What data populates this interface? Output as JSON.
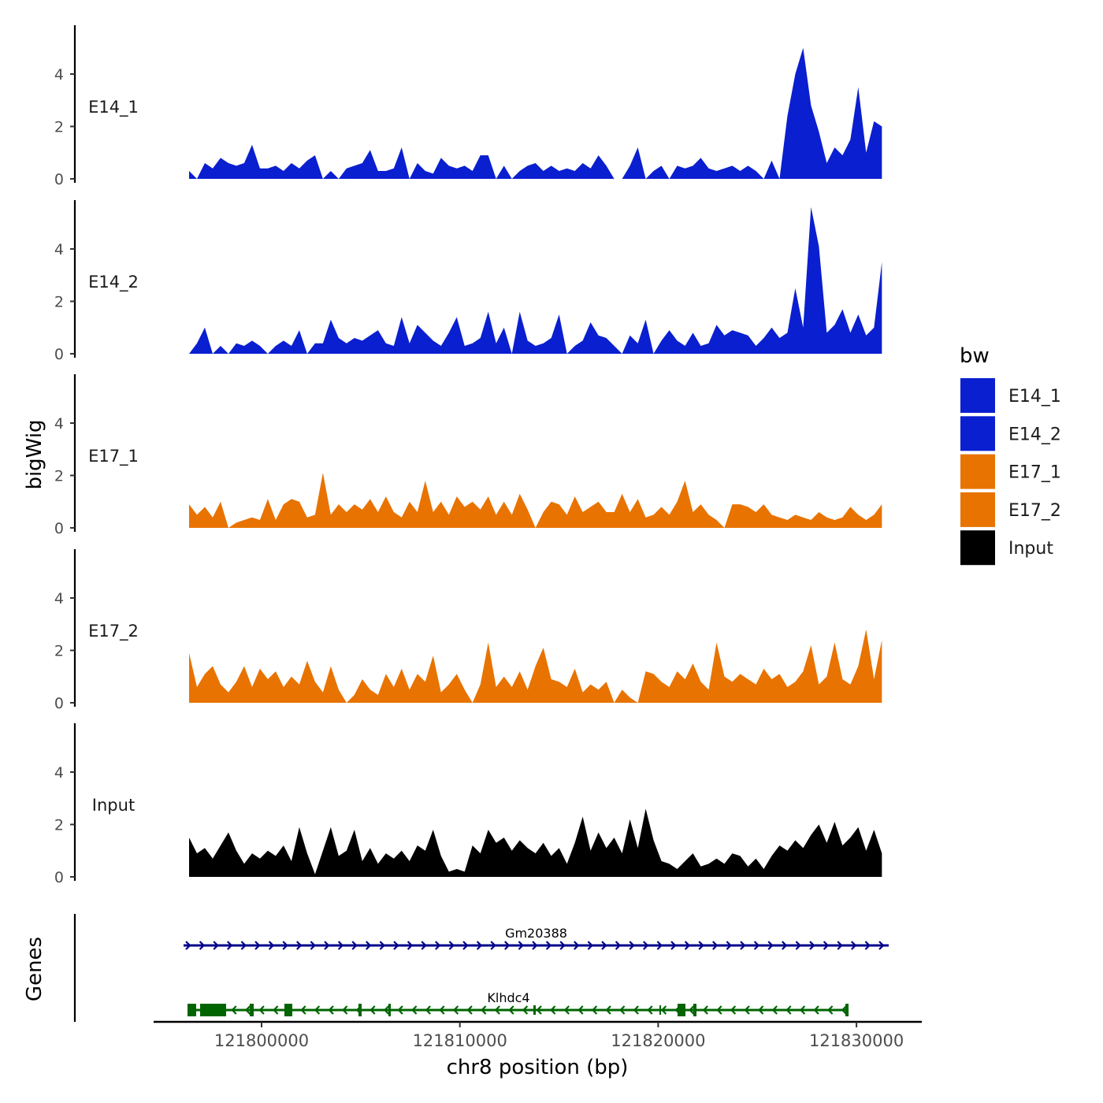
{
  "chart_data": {
    "type": "area",
    "xlabel": "chr8 position (bp)",
    "ylabel": "bigWig",
    "genes_label": "Genes",
    "x_start": 121796345,
    "x_step": 397,
    "xlim": [
      121791000,
      121833000
    ],
    "xticks": [
      121800000,
      121810000,
      121820000,
      121830000
    ],
    "xtick_labels": [
      "121800000",
      "121810000",
      "121820000",
      "121830000"
    ],
    "ylim": [
      0,
      5.9
    ],
    "yticks": [
      0,
      2,
      4
    ],
    "ytick_labels": [
      "0",
      "2",
      "4"
    ],
    "legend": {
      "title": "bw",
      "position": "right",
      "entries": [
        {
          "label": "E14_1",
          "color": "#0A1FCF"
        },
        {
          "label": "E14_2",
          "color": "#0A1FCF"
        },
        {
          "label": "E17_1",
          "color": "#E87300"
        },
        {
          "label": "E17_2",
          "color": "#E87300"
        },
        {
          "label": "Input",
          "color": "#000000"
        }
      ]
    },
    "series": [
      {
        "name": "E14_1",
        "color": "#0A1FCF",
        "values": [
          0.3,
          0,
          0.6,
          0.4,
          0.8,
          0.6,
          0.5,
          0.6,
          1.3,
          0.4,
          0.4,
          0.5,
          0.3,
          0.6,
          0.4,
          0.7,
          0.9,
          0,
          0.3,
          0,
          0.4,
          0.5,
          0.6,
          1.1,
          0.3,
          0.3,
          0.4,
          1.2,
          0,
          0.6,
          0.3,
          0.2,
          0.8,
          0.5,
          0.4,
          0.5,
          0.3,
          0.9,
          0.9,
          0,
          0.5,
          0,
          0.3,
          0.5,
          0.6,
          0.3,
          0.5,
          0.3,
          0.4,
          0.3,
          0.6,
          0.4,
          0.9,
          0.5,
          0,
          0,
          0.5,
          1.2,
          0,
          0.3,
          0.5,
          0,
          0.5,
          0.4,
          0.5,
          0.8,
          0.4,
          0.3,
          0.4,
          0.5,
          0.3,
          0.5,
          0.3,
          0,
          0.7,
          0,
          2.4,
          4.0,
          5.0,
          2.8,
          1.8,
          0.6,
          1.2,
          0.9,
          1.5,
          3.5,
          1.0,
          2.2,
          2.0
        ]
      },
      {
        "name": "E14_2",
        "color": "#0A1FCF",
        "values": [
          0,
          0.4,
          1.0,
          0,
          0.3,
          0,
          0.4,
          0.3,
          0.5,
          0.3,
          0,
          0.3,
          0.5,
          0.3,
          0.9,
          0,
          0.4,
          0.4,
          1.3,
          0.6,
          0.4,
          0.6,
          0.5,
          0.7,
          0.9,
          0.4,
          0.3,
          1.4,
          0.4,
          1.1,
          0.8,
          0.5,
          0.3,
          0.8,
          1.4,
          0.3,
          0.4,
          0.6,
          1.6,
          0.4,
          1.0,
          0,
          1.6,
          0.5,
          0.3,
          0.4,
          0.6,
          1.5,
          0,
          0.3,
          0.5,
          1.2,
          0.7,
          0.6,
          0.3,
          0,
          0.7,
          0.4,
          1.3,
          0,
          0.5,
          0.9,
          0.5,
          0.3,
          0.8,
          0.3,
          0.4,
          1.1,
          0.7,
          0.9,
          0.8,
          0.7,
          0.3,
          0.6,
          1.0,
          0.6,
          0.8,
          2.5,
          1.0,
          5.6,
          4.1,
          0.8,
          1.1,
          1.7,
          0.8,
          1.5,
          0.7,
          1.0,
          3.5
        ]
      },
      {
        "name": "E17_1",
        "color": "#E87300",
        "values": [
          0.9,
          0.5,
          0.8,
          0.4,
          1.0,
          0,
          0.2,
          0.3,
          0.4,
          0.3,
          1.1,
          0.3,
          0.9,
          1.1,
          1.0,
          0.4,
          0.5,
          2.1,
          0.5,
          0.9,
          0.6,
          0.9,
          0.7,
          1.1,
          0.6,
          1.2,
          0.6,
          0.4,
          1.0,
          0.6,
          1.8,
          0.6,
          1.0,
          0.5,
          1.2,
          0.8,
          1.0,
          0.7,
          1.2,
          0.5,
          1.0,
          0.5,
          1.3,
          0.7,
          0,
          0.6,
          1.0,
          0.9,
          0.5,
          1.2,
          0.6,
          0.8,
          1.0,
          0.6,
          0.6,
          1.3,
          0.6,
          1.1,
          0.4,
          0.5,
          0.8,
          0.5,
          1.0,
          1.8,
          0.6,
          0.9,
          0.5,
          0.3,
          0,
          0.9,
          0.9,
          0.8,
          0.6,
          0.9,
          0.5,
          0.4,
          0.3,
          0.5,
          0.4,
          0.3,
          0.6,
          0.4,
          0.3,
          0.4,
          0.8,
          0.5,
          0.3,
          0.5,
          0.9
        ]
      },
      {
        "name": "E17_2",
        "color": "#E87300",
        "values": [
          1.9,
          0.6,
          1.1,
          1.4,
          0.7,
          0.4,
          0.8,
          1.4,
          0.6,
          1.3,
          0.9,
          1.2,
          0.6,
          1.0,
          0.7,
          1.6,
          0.8,
          0.4,
          1.4,
          0.5,
          0,
          0.3,
          0.9,
          0.5,
          0.3,
          1.1,
          0.6,
          1.3,
          0.5,
          1.1,
          0.8,
          1.8,
          0.4,
          0.7,
          1.1,
          0.5,
          0,
          0.7,
          2.3,
          0.6,
          1.0,
          0.6,
          1.2,
          0.5,
          1.4,
          2.1,
          0.9,
          0.8,
          0.6,
          1.3,
          0.4,
          0.7,
          0.5,
          0.8,
          0,
          0.5,
          0.2,
          0,
          1.2,
          1.1,
          0.8,
          0.6,
          1.2,
          0.9,
          1.5,
          0.8,
          0.5,
          2.3,
          1.0,
          0.8,
          1.1,
          0.9,
          0.7,
          1.3,
          0.9,
          1.1,
          0.6,
          0.8,
          1.2,
          2.2,
          0.7,
          1.0,
          2.3,
          0.9,
          0.7,
          1.4,
          2.8,
          0.9,
          2.4
        ]
      },
      {
        "name": "Input",
        "color": "#000000",
        "values": [
          1.5,
          0.9,
          1.1,
          0.7,
          1.2,
          1.7,
          1.0,
          0.5,
          0.9,
          0.7,
          1.0,
          0.8,
          1.2,
          0.6,
          1.9,
          0.9,
          0.1,
          1.0,
          1.9,
          0.8,
          1.0,
          1.8,
          0.6,
          1.1,
          0.5,
          0.9,
          0.7,
          1.0,
          0.6,
          1.2,
          1.0,
          1.8,
          0.8,
          0.2,
          0.3,
          0.2,
          1.2,
          0.9,
          1.8,
          1.3,
          1.5,
          1.0,
          1.4,
          1.1,
          0.9,
          1.3,
          0.8,
          1.1,
          0.5,
          1.3,
          2.3,
          1.0,
          1.7,
          1.1,
          1.5,
          0.9,
          2.2,
          1.1,
          2.6,
          1.4,
          0.6,
          0.5,
          0.3,
          0.6,
          0.9,
          0.4,
          0.5,
          0.7,
          0.5,
          0.9,
          0.8,
          0.4,
          0.7,
          0.3,
          0.8,
          1.2,
          1.0,
          1.4,
          1.1,
          1.6,
          2.0,
          1.3,
          2.1,
          1.2,
          1.5,
          1.9,
          1.0,
          1.8,
          0.9
        ]
      }
    ],
    "genes": [
      {
        "name": "Gm20388",
        "strand": "+",
        "start": 121796067,
        "end": 121831626,
        "color": "#00008B",
        "exons": []
      },
      {
        "name": "Klhdc4",
        "strand": "-",
        "start": 121796265,
        "end": 121829600,
        "color": "#006400",
        "exons": [
          [
            121796265,
            121796702
          ],
          [
            121796901,
            121798212
          ],
          [
            121799404,
            121799603
          ],
          [
            121801152,
            121801549
          ],
          [
            121804887,
            121805046
          ],
          [
            121806397,
            121806517
          ],
          [
            121813707,
            121813826
          ],
          [
            121820064,
            121820143
          ],
          [
            121820978,
            121821375
          ],
          [
            121821772,
            121821931
          ],
          [
            121829441,
            121829600
          ]
        ]
      }
    ]
  }
}
